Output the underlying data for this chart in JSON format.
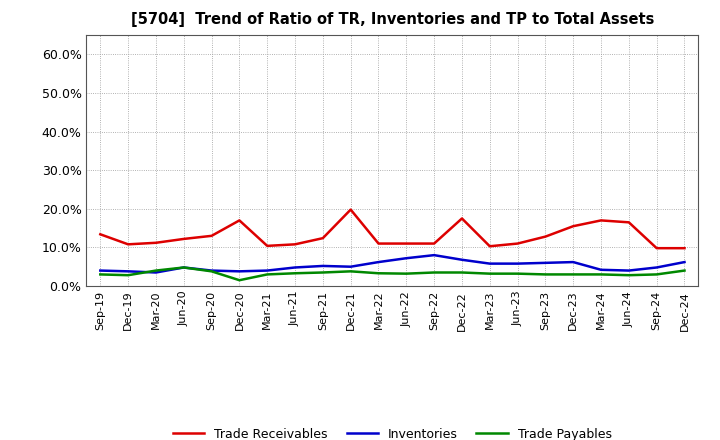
{
  "title": "[5704]  Trend of Ratio of TR, Inventories and TP to Total Assets",
  "x_labels": [
    "Sep-19",
    "Dec-19",
    "Mar-20",
    "Jun-20",
    "Sep-20",
    "Dec-20",
    "Mar-21",
    "Jun-21",
    "Sep-21",
    "Dec-21",
    "Mar-22",
    "Jun-22",
    "Sep-22",
    "Dec-22",
    "Mar-23",
    "Jun-23",
    "Sep-23",
    "Dec-23",
    "Mar-24",
    "Jun-24",
    "Sep-24",
    "Dec-24"
  ],
  "trade_receivables": [
    0.134,
    0.108,
    0.112,
    0.122,
    0.13,
    0.17,
    0.104,
    0.108,
    0.124,
    0.198,
    0.11,
    0.11,
    0.11,
    0.175,
    0.103,
    0.11,
    0.128,
    0.155,
    0.17,
    0.165,
    0.098,
    0.098
  ],
  "inventories": [
    0.04,
    0.038,
    0.035,
    0.048,
    0.04,
    0.038,
    0.04,
    0.048,
    0.052,
    0.05,
    0.062,
    0.072,
    0.08,
    0.068,
    0.058,
    0.058,
    0.06,
    0.062,
    0.042,
    0.04,
    0.048,
    0.062
  ],
  "trade_payables": [
    0.03,
    0.028,
    0.04,
    0.048,
    0.038,
    0.015,
    0.03,
    0.033,
    0.035,
    0.038,
    0.033,
    0.032,
    0.035,
    0.035,
    0.032,
    0.032,
    0.03,
    0.03,
    0.03,
    0.028,
    0.03,
    0.04
  ],
  "tr_color": "#dd0000",
  "inv_color": "#0000cc",
  "tp_color": "#008800",
  "ylim": [
    0.0,
    0.65
  ],
  "yticks": [
    0.0,
    0.1,
    0.2,
    0.3,
    0.4,
    0.5,
    0.6
  ],
  "background_color": "#ffffff",
  "plot_bg_color": "#ffffff",
  "grid_color": "#999999",
  "legend_labels": [
    "Trade Receivables",
    "Inventories",
    "Trade Payables"
  ]
}
